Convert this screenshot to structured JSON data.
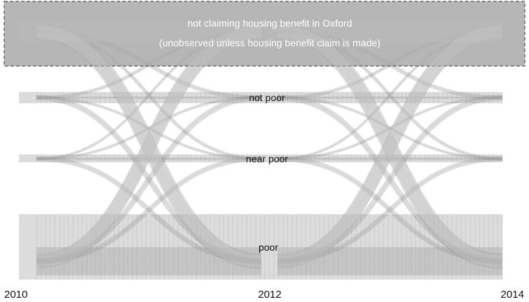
{
  "title_lines": [
    "not claiming housing benefit in Oxford",
    "(unobserved unless housing benefit claim is made)"
  ],
  "states": {
    "not_poor": "not poor",
    "near_poor": "near poor",
    "poor": "poor"
  },
  "years": [
    "2010",
    "2012",
    "2014"
  ],
  "colors": {
    "band": "#dcdcdc",
    "flow_stroke": "#b0b0b0",
    "unobserved_box": "#a9a9a9",
    "text": "#111111"
  }
}
